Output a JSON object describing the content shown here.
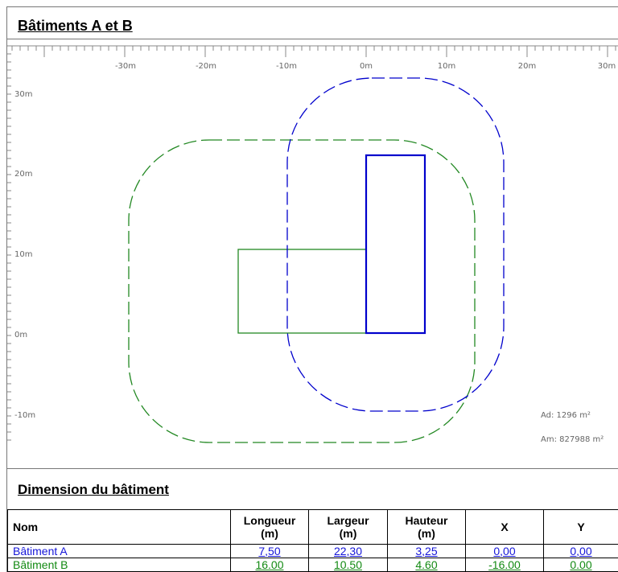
{
  "header": {
    "title": "Bâtiments A et B"
  },
  "plan": {
    "x_ticks": [
      "-30m",
      "-20m",
      "-10m",
      "0m",
      "10m",
      "20m",
      "30m"
    ],
    "y_ticks": [
      "30m",
      "20m",
      "10m",
      "0m",
      "-10m"
    ],
    "ad_label": "Ad: 1296 m²",
    "am_label": "Am: 827988 m²",
    "color_a": "#0000cc",
    "color_b": "#228822"
  },
  "section": {
    "title": "Dimension du bâtiment"
  },
  "table": {
    "headers": {
      "nom": "Nom",
      "longueur": "Longueur",
      "largeur": "Largeur",
      "hauteur": "Hauteur",
      "unit": "(m)",
      "x": "X",
      "y": "Y"
    },
    "rows": [
      {
        "nom": "Bâtiment A",
        "longueur": "7,50",
        "largeur": "22,30",
        "hauteur": "3,25",
        "x": "0,00",
        "y": "0,00"
      },
      {
        "nom": "Bâtiment B",
        "longueur": "16.00",
        "largeur": "10.50",
        "hauteur": "4.60",
        "x": "-16.00",
        "y": "0.00"
      }
    ]
  }
}
